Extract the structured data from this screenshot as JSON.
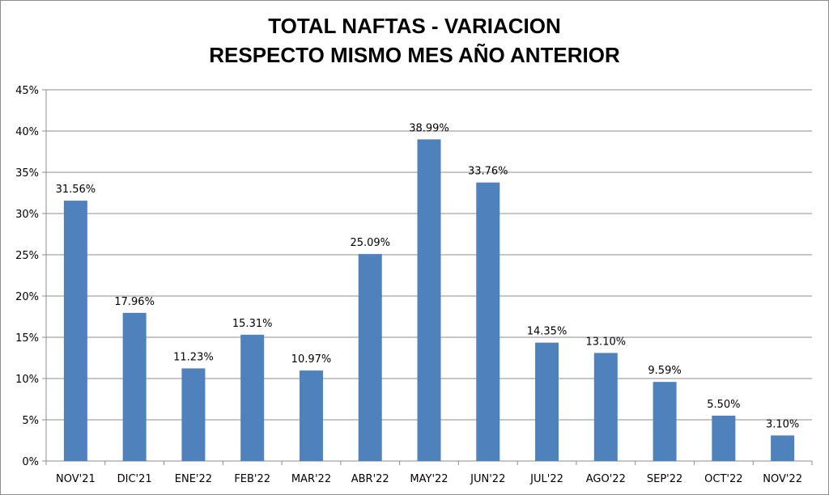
{
  "chart_data": {
    "type": "bar",
    "title_line1": "TOTAL NAFTAS - VARIACION",
    "title_line2": "RESPECTO MISMO MES AÑO ANTERIOR",
    "categories": [
      "NOV'21",
      "DIC'21",
      "ENE'22",
      "FEB'22",
      "MAR'22",
      "ABR'22",
      "MAY'22",
      "JUN'22",
      "JUL'22",
      "AGO'22",
      "SEP'22",
      "OCT'22",
      "NOV'22"
    ],
    "values": [
      31.56,
      17.96,
      11.23,
      15.31,
      10.97,
      25.09,
      38.99,
      33.76,
      14.35,
      13.1,
      9.59,
      5.5,
      3.1
    ],
    "data_labels": [
      "31.56%",
      "17.96%",
      "11.23%",
      "15.31%",
      "10.97%",
      "25.09%",
      "38.99%",
      "33.76%",
      "14.35%",
      "13.10%",
      "9.59%",
      "5.50%",
      "3.10%"
    ],
    "y_ticks": [
      "0%",
      "5%",
      "10%",
      "15%",
      "20%",
      "25%",
      "30%",
      "35%",
      "40%",
      "45%"
    ],
    "ylim": [
      0,
      45
    ],
    "y_step": 5,
    "grid": true,
    "legend": "none",
    "bar_color": "#4f81bd",
    "grid_color": "#8c8c8c"
  }
}
